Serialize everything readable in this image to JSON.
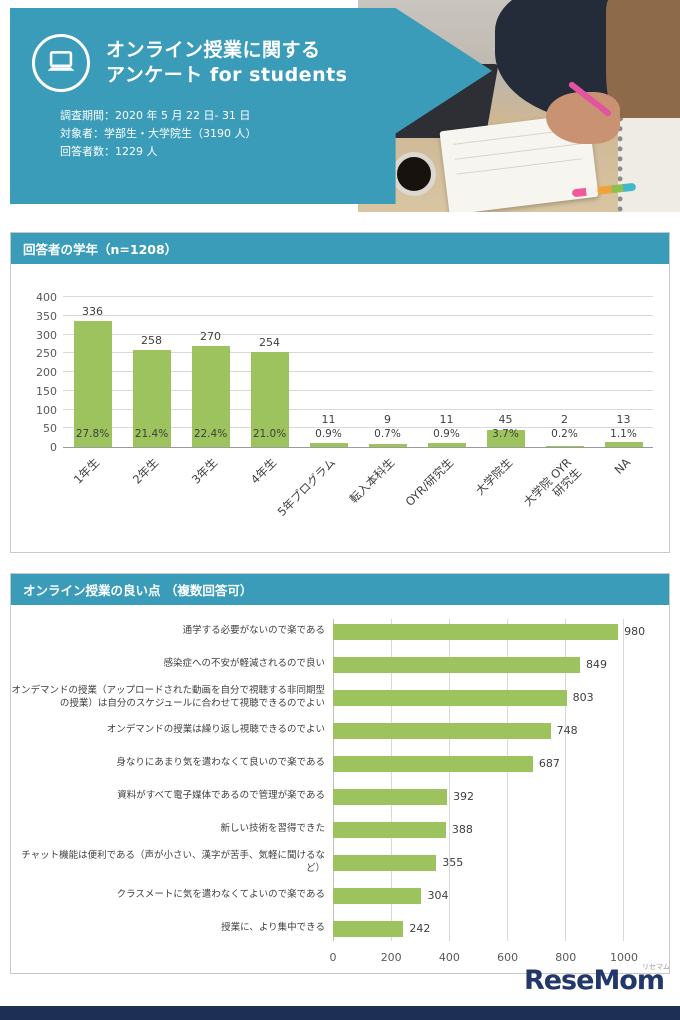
{
  "header": {
    "title_line1": "オンライン授業に関する",
    "title_line2": "アンケート for students",
    "info_lines": [
      "調査期間：2020 年 5 月 22 日- 31 日",
      "対象者：学部生・大学院生（3190 人）",
      "回答者数：1229 人"
    ]
  },
  "sections": [
    {
      "title": "回答者の学年（n=1208）"
    },
    {
      "title": "オンライン授業の良い点 （複数回答可）"
    }
  ],
  "footer": {
    "logo_text": "ReseMom",
    "logo_small": "リセマム"
  },
  "colors": {
    "teal": "#3b9cba",
    "bar_green": "#9cc35e",
    "navy": "#1e2f55"
  },
  "chart_data": [
    {
      "type": "bar",
      "title": "回答者の学年（n=1208）",
      "categories": [
        "1年生",
        "2年生",
        "3年生",
        "4年生",
        "5年プログラム",
        "転入本科生",
        "OYR/研究生",
        "大学院生",
        "大学院 OYR\n研究生",
        "NA"
      ],
      "values": [
        336,
        258,
        270,
        254,
        11,
        9,
        11,
        45,
        2,
        13
      ],
      "percent_labels": [
        "27.8%",
        "21.4%",
        "22.4%",
        "21.0%",
        "0.9%",
        "0.7%",
        "0.9%",
        "3.7%",
        "0.2%",
        "1.1%"
      ],
      "xlabel": "",
      "ylabel": "",
      "ylim": [
        0,
        400
      ],
      "ytick_step": 50,
      "grid": true,
      "bar_color": "#9cc35e"
    },
    {
      "type": "bar_horizontal",
      "title": "オンライン授業の良い点（複数回答可）",
      "categories": [
        "通学する必要がないので楽である",
        "感染症への不安が軽減されるので良い",
        "オンデマンドの授業（アップロードされた動画を自分で視聴する非同期型の授業）は自分のスケジュールに合わせて視聴できるのでよい",
        "オンデマンドの授業は繰り返し視聴できるのでよい",
        "身なりにあまり気を遣わなくて良いので楽である",
        "資料がすべて電子媒体であるので管理が楽である",
        "新しい技術を習得できた",
        "チャット機能は便利である（声が小さい、漢字が苦手、気軽に聞けるなど）",
        "クラスメートに気を遣わなくてよいので楽である",
        "授業に、より集中できる"
      ],
      "values": [
        980,
        849,
        803,
        748,
        687,
        392,
        388,
        355,
        304,
        242
      ],
      "xlim": [
        0,
        1000
      ],
      "xticks": [
        0,
        200,
        400,
        600,
        800,
        1000
      ],
      "grid": true,
      "bar_color": "#9cc35e"
    }
  ]
}
